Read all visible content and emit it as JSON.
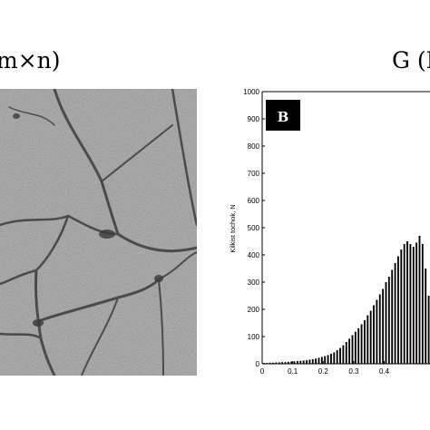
{
  "panel_left": {
    "title": "m×n)"
  },
  "panel_right": {
    "title": "G (F",
    "badge": "B"
  },
  "colors": {
    "micro_bg": "#8a8a8a",
    "bars": "#000000",
    "badge_bg": "#000000"
  },
  "chart_data": {
    "type": "bar",
    "title": "",
    "xlabel": "",
    "ylabel": "Kilkist tochok, N",
    "xlim": [
      0,
      0.55
    ],
    "ylim": [
      0,
      1000
    ],
    "x_ticks": [
      "0",
      "0.1",
      "0.2",
      "0.3",
      "0.4"
    ],
    "y_ticks": [
      "0",
      "100",
      "200",
      "300",
      "400",
      "500",
      "600",
      "700",
      "800",
      "900",
      "1000"
    ],
    "grid": false,
    "series": [
      {
        "x": [
          0.0,
          0.01,
          0.02,
          0.03,
          0.04,
          0.05,
          0.06,
          0.07,
          0.08,
          0.09,
          0.1,
          0.11,
          0.12,
          0.13,
          0.14,
          0.15,
          0.16,
          0.17,
          0.18,
          0.19,
          0.2,
          0.21,
          0.22,
          0.23,
          0.24,
          0.25,
          0.26,
          0.27,
          0.28,
          0.29,
          0.3,
          0.31,
          0.32,
          0.33,
          0.34,
          0.35,
          0.36,
          0.37,
          0.38,
          0.39,
          0.4,
          0.41,
          0.42,
          0.43,
          0.44,
          0.45,
          0.46,
          0.47,
          0.48,
          0.49,
          0.5,
          0.51,
          0.52,
          0.53,
          0.54
        ],
        "values": [
          3,
          3,
          4,
          4,
          5,
          5,
          6,
          6,
          7,
          8,
          9,
          10,
          11,
          12,
          13,
          15,
          17,
          19,
          22,
          25,
          28,
          32,
          37,
          42,
          50,
          58,
          68,
          80,
          92,
          105,
          118,
          130,
          145,
          160,
          178,
          195,
          215,
          235,
          255,
          275,
          300,
          320,
          345,
          370,
          395,
          420,
          440,
          450,
          440,
          430,
          445,
          470,
          440,
          350,
          250
        ]
      }
    ]
  }
}
